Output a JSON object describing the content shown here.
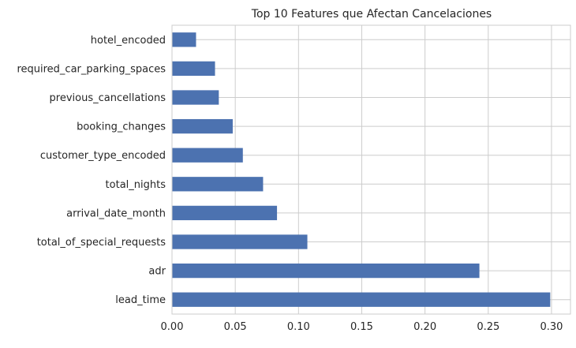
{
  "chart_data": {
    "type": "bar",
    "orientation": "horizontal",
    "title": "Top 10 Features que Afectan Cancelaciones",
    "xlabel": "",
    "ylabel": "",
    "categories": [
      "lead_time",
      "adr",
      "total_of_special_requests",
      "arrival_date_month",
      "total_nights",
      "customer_type_encoded",
      "booking_changes",
      "previous_cancellations",
      "required_car_parking_spaces",
      "hotel_encoded"
    ],
    "values": [
      0.299,
      0.243,
      0.107,
      0.083,
      0.072,
      0.056,
      0.048,
      0.037,
      0.034,
      0.019
    ],
    "xlim": [
      0,
      0.315
    ],
    "xticks": [
      0.0,
      0.05,
      0.1,
      0.15,
      0.2,
      0.25,
      0.3
    ],
    "xtick_labels": [
      "0.00",
      "0.05",
      "0.10",
      "0.15",
      "0.20",
      "0.25",
      "0.30"
    ],
    "grid": true,
    "bar_color": "#4c72b0",
    "grid_color": "#cccccc"
  }
}
